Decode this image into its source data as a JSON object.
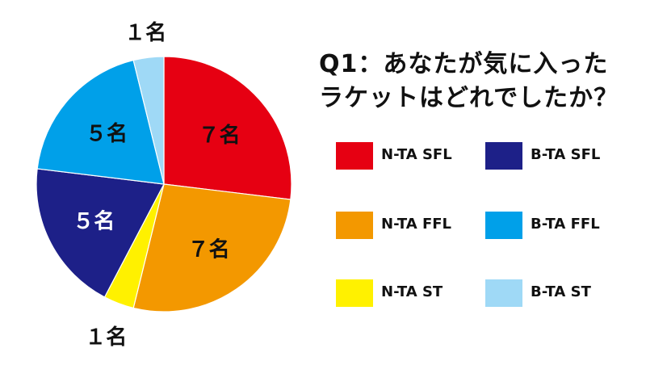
{
  "chart_data": {
    "type": "pie",
    "title_lines": [
      "Q1：あなたが気に入った",
      "ラケットはどれでしたか？"
    ],
    "slices": [
      {
        "name": "N-TA SFL",
        "value": 7,
        "label": "７名",
        "color": "#e60012",
        "label_color": "#111111"
      },
      {
        "name": "N-TA FFL",
        "value": 7,
        "label": "７名",
        "color": "#f39800",
        "label_color": "#111111"
      },
      {
        "name": "N-TA ST",
        "value": 1,
        "label": "１名",
        "color": "#fff100",
        "label_color": "#111111"
      },
      {
        "name": "B-TA SFL",
        "value": 5,
        "label": "５名",
        "color": "#1d2088",
        "label_color": "#ffffff"
      },
      {
        "name": "B-TA FFL",
        "value": 5,
        "label": "５名",
        "color": "#00a0e9",
        "label_color": "#111111"
      },
      {
        "name": "B-TA ST",
        "value": 1,
        "label": "１名",
        "color": "#9fd9f6",
        "label_color": "#111111"
      }
    ],
    "legend": [
      {
        "name": "N-TA SFL",
        "color": "#e60012"
      },
      {
        "name": "B-TA SFL",
        "color": "#1d2088"
      },
      {
        "name": "N-TA FFL",
        "color": "#f39800"
      },
      {
        "name": "B-TA FFL",
        "color": "#00a0e9"
      },
      {
        "name": "N-TA ST",
        "color": "#fff100"
      },
      {
        "name": "B-TA ST",
        "color": "#9fd9f6"
      }
    ],
    "legend_placement": "right",
    "start": "12 o'clock",
    "direction": "clockwise"
  }
}
